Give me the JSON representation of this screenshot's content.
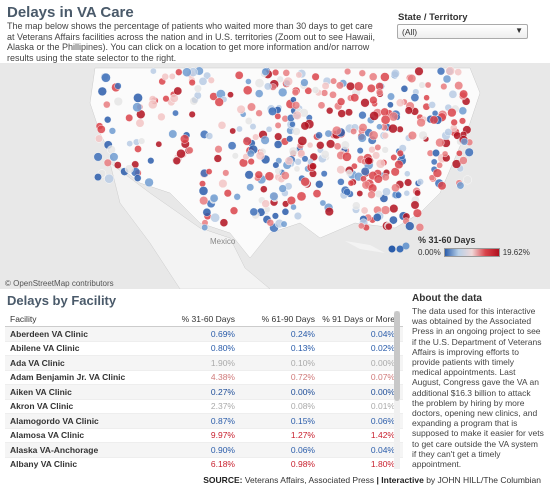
{
  "header": {
    "title": "Delays in VA Care",
    "intro": "The map below shows the percentage of patients who waited more than 30 days to get care at Veterans Affairs facilities across the nation and in U.S. territories (Zoom out to see Hawaii, Alaska or the Phillipines). You can click on a location to get more information and/or narrow results using the state selector to the right."
  },
  "state_filter": {
    "label": "State / Territory",
    "value": "(All)"
  },
  "map": {
    "credit": "© OpenStreetMap contributors",
    "place_label": "Mexico"
  },
  "legend": {
    "title": "% 31-60 Days",
    "min": "0.00%",
    "max": "19.62%"
  },
  "table": {
    "title": "Delays by Facility",
    "columns": [
      "Facility",
      "% 31-60 Days",
      "% 61-90 Days",
      "% 91 Days or More"
    ],
    "rows": [
      {
        "facility": "Aberdeen VA Clinic",
        "d31": "0.69%",
        "d61": "0.24%",
        "d91": "0.04%",
        "c31": "c-blue",
        "c61": "c-blue",
        "c91": "c-blue"
      },
      {
        "facility": "Abilene VA Clinic",
        "d31": "0.80%",
        "d61": "0.13%",
        "d91": "0.02%",
        "c31": "c-blue",
        "c61": "c-blue",
        "c91": "c-blue"
      },
      {
        "facility": "Ada VA Clinic",
        "d31": "1.90%",
        "d61": "0.10%",
        "d91": "0.00%",
        "c31": "c-grey",
        "c61": "c-grey",
        "c91": "c-grey"
      },
      {
        "facility": "Adam Benjamin Jr. VA Clinic",
        "d31": "4.38%",
        "d61": "0.72%",
        "d91": "0.07%",
        "c31": "c-pink",
        "c61": "c-pink",
        "c91": "c-pink"
      },
      {
        "facility": "Aiken VA Clinic",
        "d31": "0.27%",
        "d61": "0.00%",
        "d91": "0.00%",
        "c31": "c-dblue",
        "c61": "c-dblue",
        "c91": "c-dblue"
      },
      {
        "facility": "Akron VA Clinic",
        "d31": "2.37%",
        "d61": "0.08%",
        "d91": "0.01%",
        "c31": "c-grey",
        "c61": "c-grey",
        "c91": "c-grey"
      },
      {
        "facility": "Alamogordo VA Clinic",
        "d31": "0.87%",
        "d61": "0.15%",
        "d91": "0.06%",
        "c31": "c-blue",
        "c61": "c-blue",
        "c91": "c-blue"
      },
      {
        "facility": "Alamosa VA Clinic",
        "d31": "9.97%",
        "d61": "1.27%",
        "d91": "1.42%",
        "c31": "c-red",
        "c61": "c-red",
        "c91": "c-red"
      },
      {
        "facility": "Alaska VA-Anchorage",
        "d31": "0.90%",
        "d61": "0.06%",
        "d91": "0.04%",
        "c31": "c-blue",
        "c61": "c-blue",
        "c91": "c-blue"
      },
      {
        "facility": "Albany VA Clinic",
        "d31": "6.18%",
        "d61": "0.98%",
        "d91": "1.80%",
        "c31": "c-red",
        "c61": "c-red",
        "c91": "c-red"
      }
    ]
  },
  "about": {
    "title": "About the data",
    "text": "The data used for this interactive was obtained by the Associated Press in an ongoing project to see if the U.S. Department of Veterans Affairs is improving efforts to provide patients with timely medical appointments. Last August, Congress gave the VA an additional $16.3 billion to attack the problem by hiring by more doctors, opening new clinics, and expanding a program that is supposed to make it easier for vets to get care outside the VA system if they can't get a timely appointment."
  },
  "footer": {
    "source_label": "SOURCE:",
    "source": "Veterans Affairs, Associated Press",
    "sep": "|",
    "interactive_label": "Interactive",
    "credit": "by JOHN HILL/The Columbian"
  },
  "colors": {
    "low": "#2a5caa",
    "mid": "#e0e0e0",
    "high": "#c8202e"
  }
}
